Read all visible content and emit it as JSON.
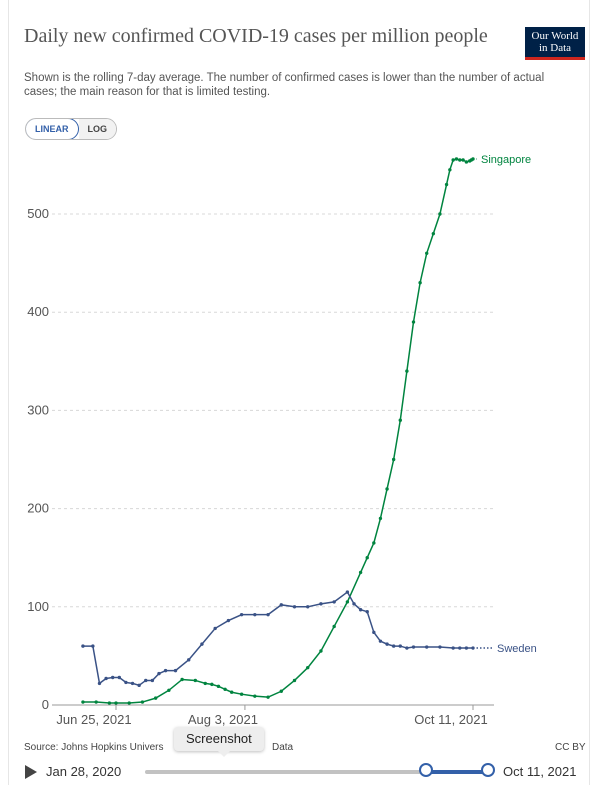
{
  "header": {
    "title": "Daily new confirmed COVID-19 cases per million people",
    "subtitle": "Shown is the rolling 7-day average. The number of confirmed cases is lower than the number of actual cases; the main reason for that is limited testing.",
    "logo_line1": "Our World",
    "logo_line2": "in Data"
  },
  "controls": {
    "linear_label": "LINEAR",
    "log_label": "LOG"
  },
  "footer": {
    "source": "Source: Johns Hopkins Univers",
    "source_tail": "Data",
    "license": "CC BY",
    "tooltip": "Screenshot",
    "timeline_start": "Jan 28, 2020",
    "timeline_end": "Oct 11, 2021"
  },
  "colors": {
    "singapore": "#00843f",
    "sweden": "#3a5286",
    "grid": "#d8d8d8"
  },
  "chart_data": {
    "type": "line",
    "title": "Daily new confirmed COVID-19 cases per million people",
    "xlabel": "",
    "ylabel": "",
    "x_tick_labels": [
      "Jun 25, 2021",
      "Aug 3, 2021",
      "Oct 11, 2021"
    ],
    "y_ticks": [
      0,
      100,
      200,
      300,
      400,
      500
    ],
    "ylim": [
      0,
      560
    ],
    "x_range_days": [
      0,
      110
    ],
    "x_tick_days": [
      0,
      39,
      108
    ],
    "grid": "horizontal dashed",
    "series": [
      {
        "name": "Singapore",
        "color_key": "singapore",
        "x": [
          -10,
          -6,
          -2,
          0,
          4,
          8,
          12,
          16,
          20,
          24,
          27,
          29,
          31,
          33,
          35,
          38,
          42,
          46,
          50,
          54,
          58,
          62,
          66,
          70,
          74,
          76,
          78,
          80,
          82,
          84,
          86,
          88,
          90,
          92,
          94,
          96,
          98,
          100,
          101,
          102,
          103,
          104,
          105,
          106,
          107,
          107.5,
          108
        ],
        "y": [
          3,
          3,
          2,
          2,
          2,
          3,
          7,
          15,
          26,
          25,
          22,
          21,
          19,
          16,
          13,
          11,
          9,
          8,
          14,
          25,
          38,
          55,
          80,
          105,
          135,
          150,
          165,
          190,
          220,
          250,
          290,
          340,
          390,
          430,
          460,
          480,
          500,
          530,
          545,
          555,
          556,
          555,
          555,
          553,
          554,
          555,
          556
        ]
      },
      {
        "name": "Sweden",
        "color_key": "sweden",
        "x": [
          -10,
          -7,
          -5,
          -3,
          -1,
          1,
          3,
          5,
          7,
          9,
          11,
          13,
          15,
          18,
          22,
          26,
          30,
          34,
          38,
          42,
          46,
          50,
          54,
          58,
          62,
          66,
          70,
          72,
          74,
          76,
          78,
          80,
          82,
          84,
          86,
          88,
          90,
          94,
          98,
          102,
          104,
          106,
          108
        ],
        "y": [
          60,
          60,
          22,
          27,
          28,
          28,
          23,
          22,
          20,
          25,
          25,
          32,
          35,
          35,
          46,
          62,
          78,
          86,
          92,
          92,
          92,
          102,
          100,
          100,
          103,
          105,
          115,
          103,
          97,
          95,
          74,
          65,
          62,
          60,
          60,
          58,
          59,
          59,
          59,
          58,
          58,
          58,
          58
        ]
      }
    ]
  }
}
